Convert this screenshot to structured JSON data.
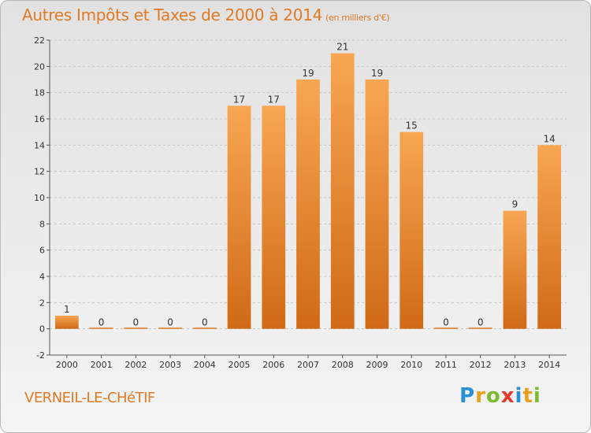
{
  "title": "Autres Impôts et Taxes de 2000 à 2014",
  "subtitle": "(en milliers d'€)",
  "commune": "VERNEIL-LE-CHéTIF",
  "logo": [
    "P",
    "r",
    "o",
    "x",
    "i",
    "t",
    "i"
  ],
  "colors": {
    "bar_light": "#f8a652",
    "bar_dark": "#d06a17",
    "title": "#e07a25",
    "axis": "#333333"
  },
  "chart_data": {
    "type": "bar",
    "categories": [
      "2000",
      "2001",
      "2002",
      "2003",
      "2004",
      "2005",
      "2006",
      "2007",
      "2008",
      "2009",
      "2010",
      "2011",
      "2012",
      "2013",
      "2014"
    ],
    "values": [
      1,
      0,
      0,
      0,
      0,
      17,
      17,
      19,
      21,
      19,
      15,
      0,
      0,
      9,
      14
    ],
    "ylim": [
      -2,
      22
    ],
    "yticks": [
      -2,
      0,
      2,
      4,
      6,
      8,
      10,
      12,
      14,
      16,
      18,
      20,
      22
    ],
    "grid": "horizontal dashed",
    "legend": "none"
  }
}
